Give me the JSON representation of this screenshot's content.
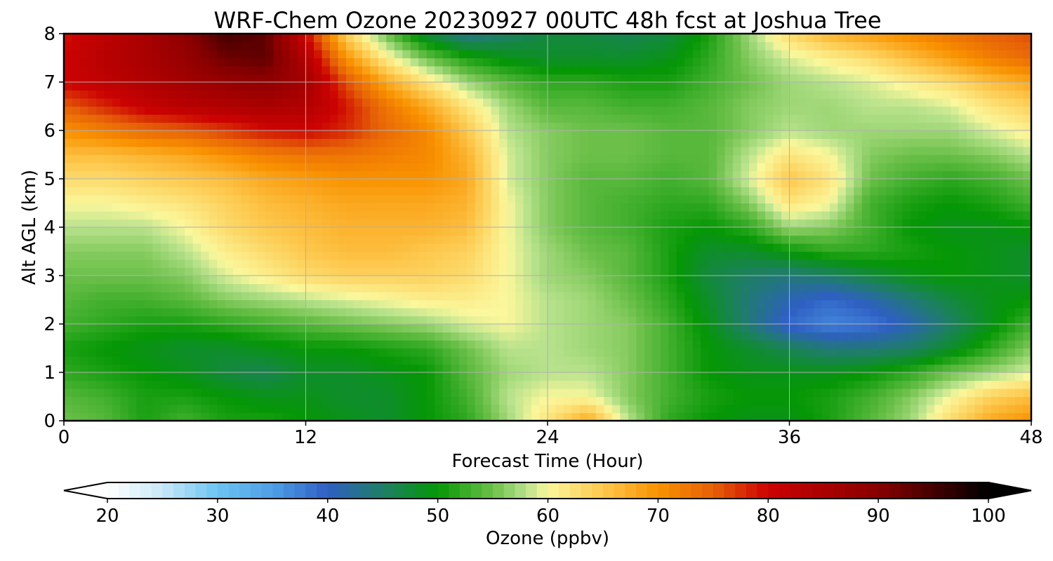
{
  "chart_data": {
    "type": "heatmap",
    "title": "WRF-Chem Ozone  20230927 00UTC 48h fcst at Joshua Tree",
    "xlabel": "Forecast Time (Hour)",
    "ylabel": "Alt AGL (km)",
    "xlim": [
      0,
      48
    ],
    "ylim": [
      0,
      8
    ],
    "x_ticks": [
      0,
      12,
      24,
      36,
      48
    ],
    "x_tick_labels": [
      "0",
      "12",
      "24",
      "36",
      "48"
    ],
    "y_ticks": [
      0,
      1,
      2,
      3,
      4,
      5,
      6,
      7,
      8
    ],
    "y_tick_labels": [
      "0",
      "1",
      "2",
      "3",
      "4",
      "5",
      "6",
      "7",
      "8"
    ],
    "grid": true,
    "x": [
      0,
      2,
      4,
      6,
      8,
      10,
      12,
      14,
      16,
      18,
      20,
      22,
      24,
      26,
      28,
      30,
      32,
      34,
      36,
      38,
      40,
      42,
      44,
      46,
      48
    ],
    "y": [
      0,
      0.5,
      1,
      1.5,
      2,
      2.5,
      3,
      3.5,
      4,
      4.5,
      5,
      5.5,
      6,
      6.5,
      7,
      7.5,
      8
    ],
    "z": [
      [
        55,
        54,
        51,
        53,
        51,
        51,
        50,
        49,
        48,
        50,
        52,
        57,
        62,
        68,
        58,
        52,
        50,
        49,
        49,
        51,
        54,
        57,
        63,
        68,
        70
      ],
      [
        54,
        53,
        51,
        51,
        50,
        49,
        49,
        48,
        48,
        50,
        53,
        58,
        60,
        60,
        56,
        53,
        51,
        50,
        50,
        51,
        53,
        56,
        60,
        64,
        66
      ],
      [
        52,
        51,
        50,
        49,
        47,
        46,
        48,
        48,
        49,
        50,
        54,
        57,
        58,
        58,
        56,
        53,
        50,
        49,
        49,
        49,
        50,
        52,
        55,
        57,
        59
      ],
      [
        51,
        50,
        49,
        48,
        48,
        49,
        50,
        50,
        51,
        52,
        55,
        58,
        58,
        57,
        56,
        53,
        50,
        48,
        46,
        44,
        44,
        45,
        48,
        52,
        56
      ],
      [
        53,
        52,
        51,
        51,
        52,
        53,
        54,
        55,
        56,
        57,
        59,
        60,
        58,
        57,
        56,
        53,
        49,
        44,
        39,
        37,
        38,
        41,
        45,
        49,
        53
      ],
      [
        54,
        53,
        53,
        54,
        56,
        57,
        58,
        59,
        60,
        61,
        61,
        60,
        58,
        57,
        55,
        52,
        48,
        44,
        41,
        39,
        41,
        44,
        47,
        49,
        50
      ],
      [
        55,
        55,
        55,
        56,
        59,
        61,
        63,
        64,
        64,
        64,
        63,
        60,
        57,
        56,
        54,
        51,
        47,
        45,
        44,
        45,
        47,
        49,
        50,
        49,
        48
      ],
      [
        56,
        56,
        56,
        58,
        61,
        63,
        65,
        66,
        66,
        65,
        64,
        60,
        57,
        55,
        54,
        51,
        48,
        48,
        50,
        52,
        52,
        51,
        50,
        49,
        48
      ],
      [
        58,
        58,
        58,
        60,
        63,
        65,
        66,
        67,
        67,
        67,
        66,
        60,
        56,
        54,
        53,
        51,
        50,
        52,
        57,
        56,
        53,
        50,
        49,
        49,
        50
      ],
      [
        60,
        60,
        61,
        62,
        64,
        66,
        67,
        68,
        68,
        68,
        67,
        60,
        56,
        54,
        53,
        52,
        52,
        56,
        62,
        60,
        53,
        51,
        50,
        51,
        53
      ],
      [
        63,
        63,
        64,
        65,
        66,
        68,
        69,
        70,
        70,
        70,
        68,
        59,
        56,
        54,
        54,
        53,
        54,
        59,
        65,
        62,
        55,
        53,
        52,
        53,
        55
      ],
      [
        66,
        66,
        67,
        68,
        70,
        72,
        73,
        73,
        72,
        71,
        67,
        59,
        56,
        55,
        55,
        54,
        54,
        58,
        62,
        60,
        56,
        55,
        55,
        56,
        58
      ],
      [
        70,
        72,
        74,
        75,
        77,
        79,
        80,
        78,
        74,
        71,
        65,
        58,
        56,
        55,
        55,
        54,
        54,
        56,
        58,
        57,
        57,
        57,
        57,
        59,
        61
      ],
      [
        75,
        78,
        81,
        83,
        84,
        85,
        84,
        79,
        73,
        68,
        62,
        57,
        54,
        54,
        53,
        53,
        54,
        56,
        57,
        57,
        58,
        58,
        59,
        62,
        64
      ],
      [
        80,
        82,
        84,
        86,
        88,
        89,
        86,
        76,
        68,
        62,
        57,
        54,
        52,
        52,
        51,
        51,
        53,
        55,
        57,
        58,
        59,
        61,
        63,
        66,
        68
      ],
      [
        80,
        83,
        85,
        88,
        92,
        93,
        84,
        70,
        61,
        55,
        51,
        49,
        48,
        48,
        48,
        49,
        52,
        56,
        59,
        61,
        63,
        66,
        69,
        72,
        74
      ],
      [
        79,
        82,
        85,
        89,
        95,
        93,
        80,
        64,
        55,
        47,
        43,
        45,
        47,
        47,
        46,
        47,
        51,
        57,
        63,
        67,
        69,
        71,
        73,
        75,
        76
      ]
    ],
    "colorbar": {
      "label": "Ozone  (ppbv)",
      "min": 20,
      "max": 100,
      "extend": "both",
      "ticks": [
        20,
        30,
        40,
        50,
        60,
        70,
        80,
        90,
        100
      ],
      "tick_labels": [
        "20",
        "30",
        "40",
        "50",
        "60",
        "70",
        "80",
        "90",
        "100"
      ],
      "color_stops": [
        {
          "v": 20,
          "c": "#ffffff"
        },
        {
          "v": 25,
          "c": "#c8e8f8"
        },
        {
          "v": 30,
          "c": "#6cc4f2"
        },
        {
          "v": 35,
          "c": "#4e9ee6"
        },
        {
          "v": 40,
          "c": "#2f5fc4"
        },
        {
          "v": 45,
          "c": "#1e7e66"
        },
        {
          "v": 50,
          "c": "#059705"
        },
        {
          "v": 55,
          "c": "#6cc04a"
        },
        {
          "v": 58,
          "c": "#b8e28c"
        },
        {
          "v": 60,
          "c": "#fbf79c"
        },
        {
          "v": 65,
          "c": "#fdc84d"
        },
        {
          "v": 70,
          "c": "#f99200"
        },
        {
          "v": 75,
          "c": "#e66008"
        },
        {
          "v": 80,
          "c": "#cc0202"
        },
        {
          "v": 90,
          "c": "#880000"
        },
        {
          "v": 100,
          "c": "#000000"
        }
      ]
    }
  }
}
